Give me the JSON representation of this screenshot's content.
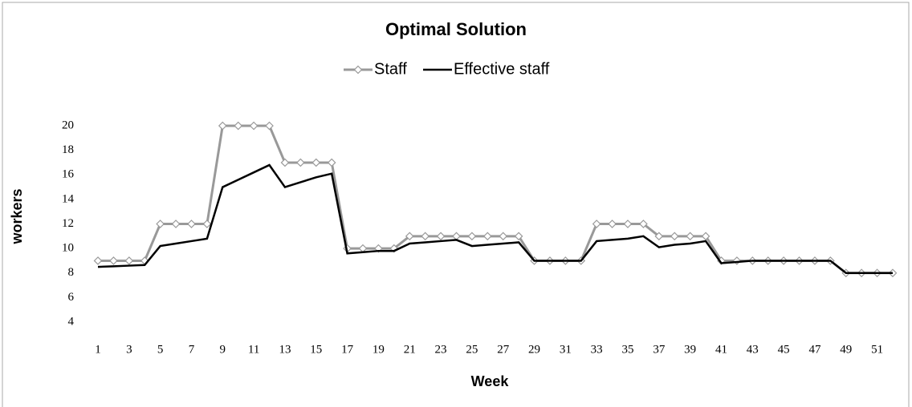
{
  "chart_data": {
    "type": "line",
    "title": "Optimal Solution",
    "x_label": "Week",
    "y_label": "workers",
    "categories": [
      1,
      null,
      3,
      null,
      5,
      null,
      7,
      null,
      9,
      null,
      11,
      null,
      13,
      null,
      15,
      null,
      17,
      null,
      19,
      null,
      21,
      null,
      23,
      null,
      25,
      null,
      27,
      null,
      29,
      null,
      31,
      null,
      33,
      null,
      35,
      null,
      37,
      null,
      39,
      null,
      41,
      null,
      43,
      null,
      45,
      null,
      47,
      null,
      49,
      null,
      51,
      null
    ],
    "series": [
      {
        "name": "Staff",
        "color": "#999999",
        "marker": "diamond",
        "values": [
          9,
          9,
          9,
          9,
          12,
          12,
          12,
          12,
          20,
          20,
          20,
          20,
          17,
          17,
          17,
          17,
          10,
          10,
          10,
          10,
          11,
          11,
          11,
          11,
          11,
          11,
          11,
          11,
          9,
          9,
          9,
          9,
          12,
          12,
          12,
          12,
          11,
          11,
          11,
          11,
          9,
          9,
          9,
          9,
          9,
          9,
          9,
          9,
          8,
          8,
          8,
          8
        ]
      },
      {
        "name": "Effective staff",
        "color": "#000000",
        "values": [
          8.5,
          8.55,
          8.6,
          8.65,
          10.2,
          10.4,
          10.6,
          10.8,
          15,
          15.6,
          16.2,
          16.8,
          15,
          15.4,
          15.8,
          16.1,
          9.6,
          9.7,
          9.8,
          9.8,
          10.4,
          10.5,
          10.6,
          10.7,
          10.2,
          10.3,
          10.4,
          10.5,
          9,
          9,
          9,
          9,
          10.6,
          10.7,
          10.8,
          11,
          10.1,
          10.3,
          10.4,
          10.6,
          8.8,
          8.9,
          9,
          9,
          9,
          9,
          9,
          9,
          8,
          8,
          8,
          8
        ]
      }
    ],
    "ylim": [
      4,
      20
    ],
    "yticks": [
      4,
      6,
      8,
      10,
      12,
      14,
      16,
      18,
      20
    ],
    "legend": "top",
    "grid": false
  }
}
